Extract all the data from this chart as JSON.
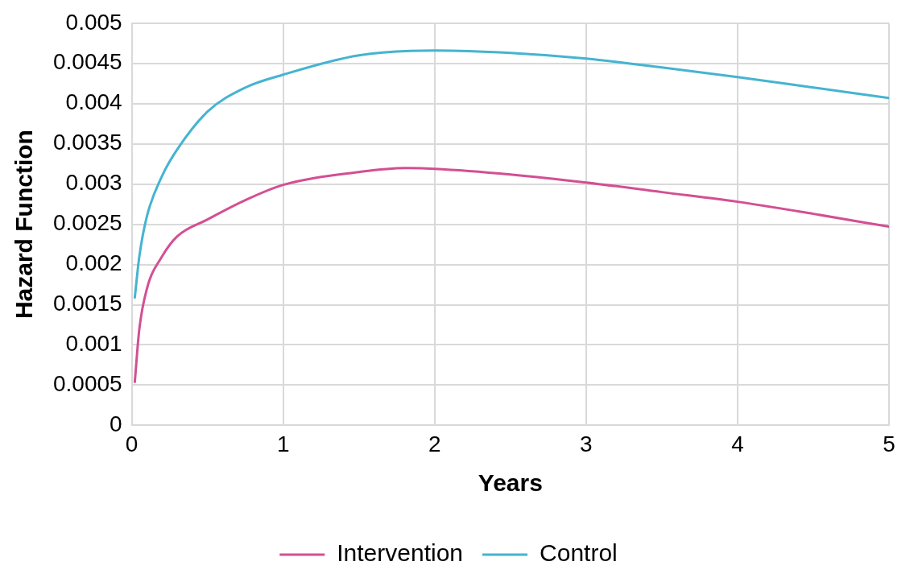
{
  "chart_data": {
    "type": "line",
    "xlabel": "Years",
    "ylabel": "Hazard Function",
    "xlim": [
      0,
      5
    ],
    "xticks": [
      0,
      1,
      2,
      3,
      4,
      5
    ],
    "ylim": [
      0,
      0.005
    ],
    "yticks": [
      0,
      0.0005,
      0.001,
      0.0015,
      0.002,
      0.0025,
      0.003,
      0.0035,
      0.004,
      0.0045,
      0.005
    ],
    "grid": true,
    "legend": "bottom",
    "marker": "none",
    "line_style": "solid",
    "series": [
      {
        "name": "Intervention",
        "color": "#d34f93",
        "x": [
          0.02,
          0.05,
          0.1,
          0.2,
          0.3,
          0.5,
          0.75,
          1,
          1.5,
          1.8,
          2,
          2.5,
          3,
          3.5,
          4,
          4.5,
          5
        ],
        "values": [
          0.00054,
          0.0012,
          0.0017,
          0.0021,
          0.00235,
          0.00256,
          0.0028,
          0.00299,
          0.00315,
          0.0032,
          0.00319,
          0.00312,
          0.00302,
          0.0029,
          0.00278,
          0.00263,
          0.00247
        ]
      },
      {
        "name": "Control",
        "color": "#45b4d0",
        "x": [
          0.02,
          0.05,
          0.1,
          0.2,
          0.3,
          0.5,
          0.75,
          1,
          1.5,
          2,
          2.5,
          3,
          3.5,
          4,
          4.5,
          5
        ],
        "values": [
          0.00159,
          0.0021,
          0.0026,
          0.0031,
          0.00343,
          0.0039,
          0.0042,
          0.00436,
          0.0046,
          0.00466,
          0.00463,
          0.00456,
          0.00445,
          0.00433,
          0.0042,
          0.00407
        ]
      }
    ]
  }
}
